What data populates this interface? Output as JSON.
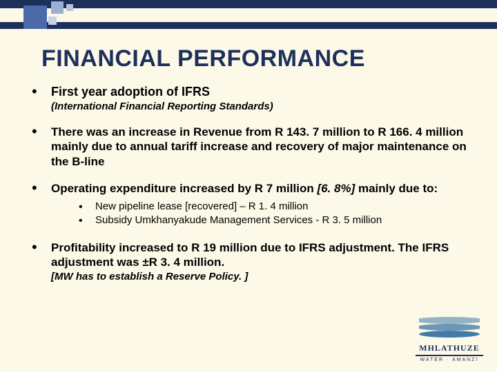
{
  "theme": {
    "background": "#fdf9e8",
    "topbar": "#1d2f5b",
    "accent_squares": [
      "#4d6aa8",
      "#9db0d2",
      "#c7d2e6",
      "#b6c4de"
    ],
    "title_color": "#1d2f5b",
    "text_color": "#000000"
  },
  "title": "FINANCIAL PERFORMANCE",
  "bullets": {
    "b1": {
      "head": "First year adoption of IFRS",
      "sub": "(International Financial Reporting Standards)"
    },
    "b2": "There was an increase in Revenue from R 143. 7 million to R 166. 4 million mainly due to annual tariff increase and recovery of major maintenance on the B-line",
    "b3": {
      "lead": "Operating expenditure increased by R 7 million ",
      "pct": "[6. 8%]",
      "tail": " mainly due to:",
      "subs": [
        "New pipeline lease [recovered] – R 1. 4 million",
        "Subsidy Umkhanyakude Management Services - R 3. 5 million"
      ]
    },
    "b4": {
      "text": "Profitability increased to R 19 million due to IFRS adjustment. The IFRS adjustment was ±R 3. 4 million.",
      "note": "[MW has to establish a Reserve Policy. ]"
    }
  },
  "logo": {
    "name": "MHLATHUZE",
    "tag": "WATER · AMANZI"
  }
}
